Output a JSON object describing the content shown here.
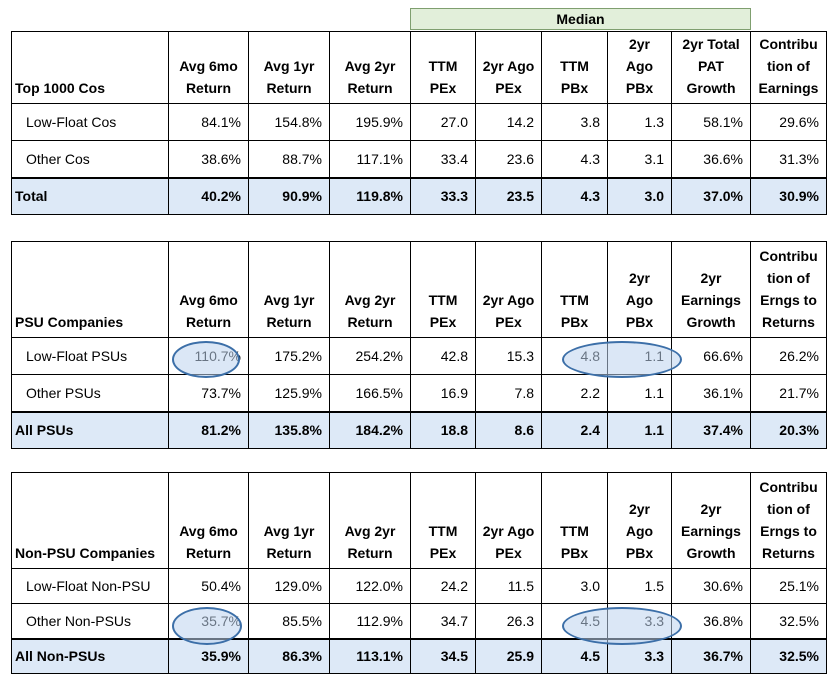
{
  "median_label": "Median",
  "columns": [
    "Avg 6mo Return",
    "Avg 1yr Return",
    "Avg 2yr Return",
    "TTM PEx",
    "2yr Ago PEx",
    "TTM PBx",
    "2yr Ago PBx"
  ],
  "tables": [
    {
      "title": "Top 1000 Cos",
      "growth_header": "2yr Total PAT Growth",
      "contrib_header": "Contribu tion of Earnings",
      "rows": [
        {
          "label": "Low-Float Cos",
          "values": [
            "84.1%",
            "154.8%",
            "195.9%",
            "27.0",
            "14.2",
            "3.8",
            "1.3",
            "58.1%",
            "29.6%"
          ]
        },
        {
          "label": "Other Cos",
          "values": [
            "38.6%",
            "88.7%",
            "117.1%",
            "33.4",
            "23.6",
            "4.3",
            "3.1",
            "36.6%",
            "31.3%"
          ]
        }
      ],
      "total": {
        "label": "Total",
        "values": [
          "40.2%",
          "90.9%",
          "119.8%",
          "33.3",
          "23.5",
          "4.3",
          "3.0",
          "37.0%",
          "30.9%"
        ]
      }
    },
    {
      "title": "PSU Companies",
      "growth_header": "2yr Earnings Growth",
      "contrib_header": "Contribu tion of Erngs to Returns",
      "rows": [
        {
          "label": "Low-Float PSUs",
          "values": [
            "110.7%",
            "175.2%",
            "254.2%",
            "42.8",
            "15.3",
            "4.8",
            "1.1",
            "66.6%",
            "26.2%"
          ]
        },
        {
          "label": "Other PSUs",
          "values": [
            "73.7%",
            "125.9%",
            "166.5%",
            "16.9",
            "7.8",
            "2.2",
            "1.1",
            "36.1%",
            "21.7%"
          ]
        }
      ],
      "total": {
        "label": "All PSUs",
        "values": [
          "81.2%",
          "135.8%",
          "184.2%",
          "18.8",
          "8.6",
          "2.4",
          "1.1",
          "37.4%",
          "20.3%"
        ]
      }
    },
    {
      "title": "Non-PSU Companies",
      "growth_header": "2yr Earnings Growth",
      "contrib_header": "Contribu tion of Erngs to Returns",
      "rows": [
        {
          "label": "Low-Float Non-PSU",
          "values": [
            "50.4%",
            "129.0%",
            "122.0%",
            "24.2",
            "11.5",
            "3.0",
            "1.5",
            "30.6%",
            "25.1%"
          ]
        },
        {
          "label": "Other Non-PSUs",
          "values": [
            "35.7%",
            "85.5%",
            "112.9%",
            "34.7",
            "26.3",
            "4.5",
            "3.3",
            "36.8%",
            "32.5%"
          ]
        }
      ],
      "total": {
        "label": "All Non-PSUs",
        "values": [
          "35.9%",
          "86.3%",
          "113.1%",
          "34.5",
          "25.9",
          "4.5",
          "3.3",
          "36.7%",
          "32.5%"
        ]
      }
    }
  ]
}
